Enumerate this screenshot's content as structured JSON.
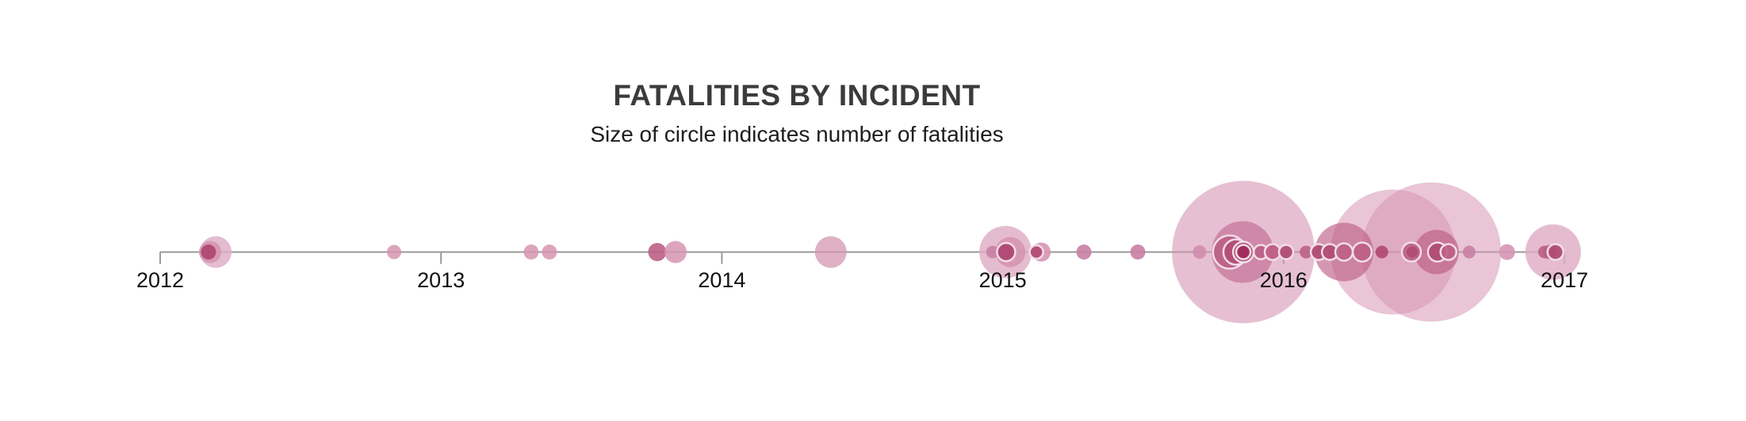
{
  "header": {
    "title": "FATALITIES BY INCIDENT",
    "subtitle": "Size of circle indicates number of fatalities"
  },
  "colors": {
    "axis": "#999999",
    "tick": "#999999",
    "year_label": "#111111",
    "title": "#3b3b3b",
    "subtitle": "#1e1e1e",
    "palette": {
      "darkest": "#a12d5f",
      "dark": "#b14c76",
      "mediumDark": "#bd5f87",
      "medium": "#c97ea3",
      "mediumLight": "#d695b2",
      "light": "#dfabc3",
      "bigLight": "#d795b4",
      "ring": "#f2dde6"
    }
  },
  "chart_data": {
    "type": "scatter",
    "title": "FATALITIES BY INCIDENT",
    "subtitle": "Size of circle indicates number of fatalities",
    "size_encoding": "circle radius indicates number of fatalities per incident",
    "x_axis": {
      "range": [
        2012,
        2017
      ],
      "tick_labels": [
        "2012",
        "2013",
        "2014",
        "2015",
        "2016",
        "2017"
      ]
    },
    "legend": "none",
    "grid": "off",
    "points": [
      {
        "year": 2012.198,
        "r": 20,
        "tone": "light",
        "opacity": 0.8
      },
      {
        "year": 2012.178,
        "r": 14,
        "tone": "mediumLight",
        "opacity": 0.9
      },
      {
        "year": 2012.172,
        "r": 9.5,
        "tone": "dark",
        "opacity": 1
      },
      {
        "year": 2012.833,
        "r": 9,
        "tone": "mediumLight",
        "opacity": 0.85
      },
      {
        "year": 2013.321,
        "r": 9.5,
        "tone": "mediumLight",
        "opacity": 0.85
      },
      {
        "year": 2013.386,
        "r": 9.5,
        "tone": "mediumLight",
        "opacity": 0.85
      },
      {
        "year": 2013.77,
        "r": 11.5,
        "tone": "mediumDark",
        "opacity": 0.9
      },
      {
        "year": 2013.835,
        "r": 14,
        "tone": "mediumLight",
        "opacity": 0.85
      },
      {
        "year": 2014.388,
        "r": 20,
        "tone": "mediumLight",
        "opacity": 0.75
      },
      {
        "year": 2015.01,
        "r": 33,
        "tone": "light",
        "opacity": 0.8
      },
      {
        "year": 2015.027,
        "r": 19,
        "tone": "mediumLight",
        "opacity": 0.9
      },
      {
        "year": 2014.964,
        "r": 8,
        "tone": "medium",
        "opacity": 0.9
      },
      {
        "year": 2015.137,
        "r": 12,
        "tone": "mediumLight",
        "opacity": 0.9
      },
      {
        "year": 2015.12,
        "r": 8.5,
        "tone": "dark",
        "opacity": 0.95,
        "ring": true
      },
      {
        "year": 2015.012,
        "r": 11.5,
        "tone": "dark",
        "opacity": 1,
        "ring": true
      },
      {
        "year": 2015.289,
        "r": 9.5,
        "tone": "medium",
        "opacity": 0.9
      },
      {
        "year": 2015.481,
        "r": 9.5,
        "tone": "medium",
        "opacity": 0.9
      },
      {
        "year": 2015.701,
        "r": 8.5,
        "tone": "medium",
        "opacity": 0.9
      },
      {
        "year": 2015.857,
        "r": 90,
        "tone": "bigLight",
        "opacity": 0.6
      },
      {
        "year": 2015.854,
        "r": 39,
        "tone": "medium",
        "opacity": 0.85
      },
      {
        "year": 2015.808,
        "r": 21,
        "tone": "mediumDark",
        "opacity": 0.9,
        "ring": true
      },
      {
        "year": 2015.831,
        "r": 16,
        "tone": "dark",
        "opacity": 0.9,
        "ring": true
      },
      {
        "year": 2015.857,
        "r": 13,
        "tone": "dark",
        "opacity": 1,
        "ring": true
      },
      {
        "year": 2015.857,
        "r": 9,
        "tone": "darkest",
        "opacity": 1,
        "ring": true
      },
      {
        "year": 2015.919,
        "r": 9,
        "tone": "mediumDark",
        "opacity": 0.9,
        "ring": true
      },
      {
        "year": 2015.961,
        "r": 10,
        "tone": "mediumDark",
        "opacity": 0.95,
        "ring": true
      },
      {
        "year": 2016.009,
        "r": 9,
        "tone": "dark",
        "opacity": 0.95,
        "ring": true
      },
      {
        "year": 2016.08,
        "r": 8,
        "tone": "mediumDark",
        "opacity": 0.9
      },
      {
        "year": 2016.39,
        "r": 79,
        "tone": "bigLight",
        "opacity": 0.55
      },
      {
        "year": 2016.526,
        "r": 88,
        "tone": "bigLight",
        "opacity": 0.55
      },
      {
        "year": 2016.215,
        "r": 37,
        "tone": "mediumDark",
        "opacity": 0.65
      },
      {
        "year": 2016.545,
        "r": 28,
        "tone": "mediumDark",
        "opacity": 0.7
      },
      {
        "year": 2016.125,
        "r": 10,
        "tone": "dark",
        "opacity": 0.95,
        "ring": true
      },
      {
        "year": 2016.165,
        "r": 10,
        "tone": "dark",
        "opacity": 0.95,
        "ring": true
      },
      {
        "year": 2016.215,
        "r": 11,
        "tone": "mediumDark",
        "opacity": 0.9,
        "ring": true
      },
      {
        "year": 2016.28,
        "r": 12,
        "tone": "mediumDark",
        "opacity": 0.9,
        "ring": true
      },
      {
        "year": 2016.35,
        "r": 8,
        "tone": "dark",
        "opacity": 0.95
      },
      {
        "year": 2016.455,
        "r": 12,
        "tone": "mediumDark",
        "opacity": 0.9,
        "ring": true
      },
      {
        "year": 2016.458,
        "r": 7,
        "tone": "dark",
        "opacity": 1
      },
      {
        "year": 2016.548,
        "r": 12,
        "tone": "dark",
        "opacity": 0.95,
        "ring": true
      },
      {
        "year": 2016.587,
        "r": 10,
        "tone": "mediumDark",
        "opacity": 0.9,
        "ring": true
      },
      {
        "year": 2016.661,
        "r": 8,
        "tone": "medium",
        "opacity": 0.9
      },
      {
        "year": 2016.796,
        "r": 10,
        "tone": "mediumLight",
        "opacity": 0.9
      },
      {
        "year": 2016.96,
        "r": 35,
        "tone": "light",
        "opacity": 0.8
      },
      {
        "year": 2016.929,
        "r": 8,
        "tone": "mediumDark",
        "opacity": 0.9
      },
      {
        "year": 2016.948,
        "r": 9,
        "tone": "mediumDark",
        "opacity": 0.9
      },
      {
        "year": 2016.968,
        "r": 10,
        "tone": "dark",
        "opacity": 0.95,
        "ring": true
      }
    ]
  }
}
